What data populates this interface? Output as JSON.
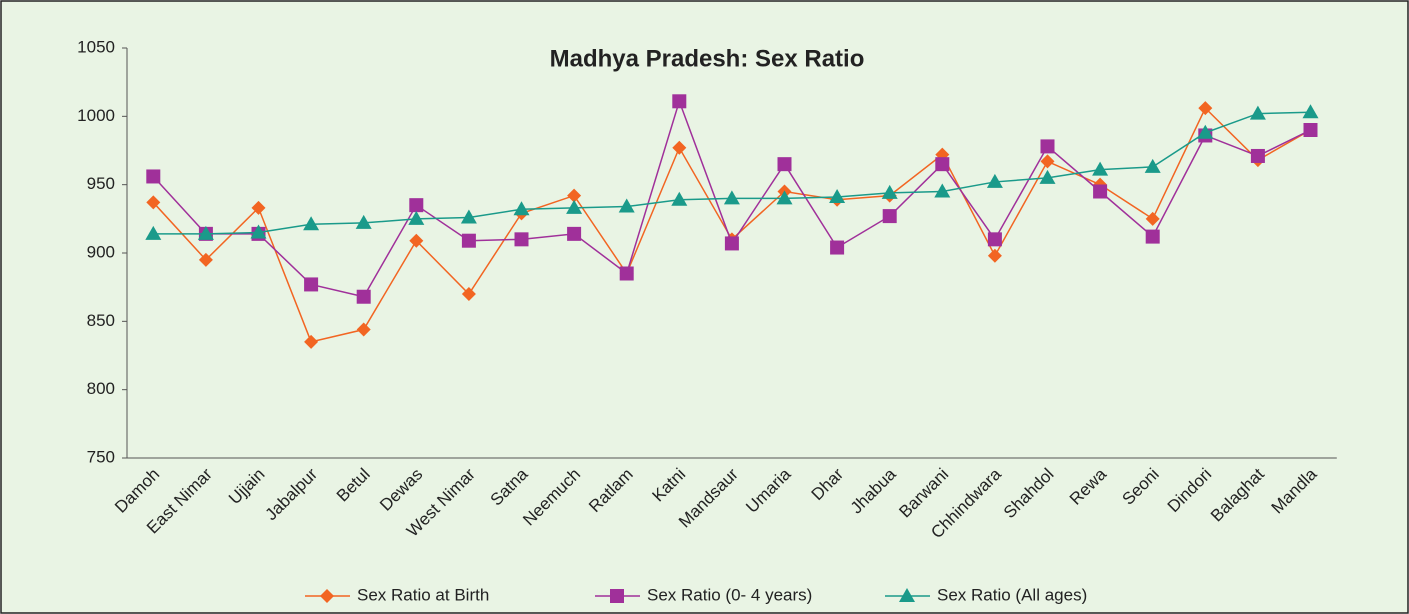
{
  "chart_data": {
    "type": "line",
    "title": "Madhya Pradesh: Sex Ratio",
    "categories": [
      "Damoh",
      "East Nimar",
      "Ujjain",
      "Jabalpur",
      "Betul",
      "Dewas",
      "West Nimar",
      "Satna",
      "Neemuch",
      "Ratlam",
      "Katni",
      "Mandsaur",
      "Umaria",
      "Dhar",
      "Jhabua",
      "Barwani",
      "Chhindwara",
      "Shahdol",
      "Rewa",
      "Seoni",
      "Dindori",
      "Balaghat",
      "Mandla"
    ],
    "series": [
      {
        "name": "Sex Ratio at Birth",
        "color": "#f26522",
        "marker": "diamond",
        "values": [
          937,
          895,
          933,
          835,
          844,
          909,
          870,
          929,
          942,
          885,
          977,
          910,
          945,
          939,
          942,
          972,
          898,
          967,
          950,
          925,
          1006,
          968,
          990
        ]
      },
      {
        "name": "Sex Ratio (0- 4 years)",
        "color": "#a0309a",
        "marker": "square",
        "values": [
          956,
          914,
          914,
          877,
          868,
          935,
          909,
          910,
          914,
          885,
          1011,
          907,
          965,
          904,
          927,
          965,
          910,
          978,
          945,
          912,
          986,
          971,
          990
        ]
      },
      {
        "name": "Sex Ratio (All ages)",
        "color": "#1a9a8a",
        "marker": "triangle",
        "values": [
          914,
          914,
          915,
          921,
          922,
          925,
          926,
          932,
          933,
          934,
          939,
          940,
          940,
          941,
          944,
          945,
          952,
          955,
          961,
          963,
          988,
          1002,
          1003
        ]
      }
    ],
    "ylim": [
      750,
      1050
    ],
    "yticks": [
      750,
      800,
      850,
      900,
      950,
      1000,
      1050
    ],
    "legend": "bottom"
  }
}
